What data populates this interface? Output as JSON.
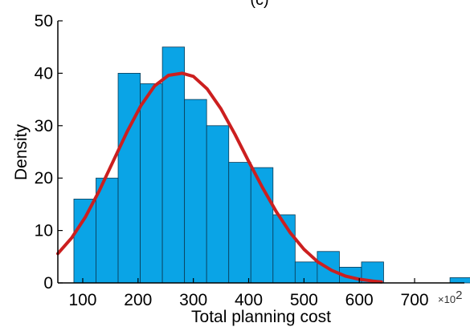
{
  "chart_data": {
    "type": "bar",
    "title": "(c)",
    "xlabel": "Total planning cost",
    "ylabel": "Density",
    "x_multiplier_label": "×10",
    "x_multiplier_exponent": "2",
    "xlim": [
      55,
      790
    ],
    "ylim": [
      0,
      50
    ],
    "xticks": [
      100,
      200,
      300,
      400,
      500,
      600,
      700
    ],
    "yticks": [
      0,
      10,
      20,
      30,
      40,
      50
    ],
    "grid": false,
    "bin_width": 40,
    "series": [
      {
        "type": "histogram",
        "color": "#0aa4e6",
        "edge_color": "#0a3a55",
        "bins": [
          {
            "x0": 84,
            "x1": 124,
            "value": 16
          },
          {
            "x0": 124,
            "x1": 164,
            "value": 20
          },
          {
            "x0": 164,
            "x1": 204,
            "value": 40
          },
          {
            "x0": 204,
            "x1": 244,
            "value": 38
          },
          {
            "x0": 244,
            "x1": 284,
            "value": 45
          },
          {
            "x0": 284,
            "x1": 324,
            "value": 35
          },
          {
            "x0": 324,
            "x1": 364,
            "value": 30
          },
          {
            "x0": 364,
            "x1": 404,
            "value": 23
          },
          {
            "x0": 404,
            "x1": 444,
            "value": 22
          },
          {
            "x0": 444,
            "x1": 484,
            "value": 13
          },
          {
            "x0": 484,
            "x1": 524,
            "value": 4
          },
          {
            "x0": 524,
            "x1": 564,
            "value": 6
          },
          {
            "x0": 564,
            "x1": 604,
            "value": 3
          },
          {
            "x0": 604,
            "x1": 644,
            "value": 4
          },
          {
            "x0": 764,
            "x1": 804,
            "value": 1
          }
        ]
      },
      {
        "type": "line",
        "color": "#cc1f1f",
        "points": [
          [
            55,
            5.6
          ],
          [
            80,
            8.6
          ],
          [
            105,
            12.6
          ],
          [
            130,
            17.6
          ],
          [
            155,
            23.2
          ],
          [
            180,
            28.8
          ],
          [
            205,
            33.8
          ],
          [
            230,
            37.6
          ],
          [
            255,
            39.6
          ],
          [
            280,
            40.0
          ],
          [
            300,
            39.4
          ],
          [
            325,
            37.0
          ],
          [
            350,
            33.2
          ],
          [
            375,
            28.4
          ],
          [
            400,
            23.2
          ],
          [
            425,
            18.2
          ],
          [
            450,
            13.6
          ],
          [
            475,
            9.6
          ],
          [
            500,
            6.4
          ],
          [
            525,
            4.0
          ],
          [
            550,
            2.4
          ],
          [
            575,
            1.3
          ],
          [
            600,
            0.7
          ],
          [
            625,
            0.35
          ],
          [
            640,
            0.2
          ]
        ]
      }
    ]
  }
}
